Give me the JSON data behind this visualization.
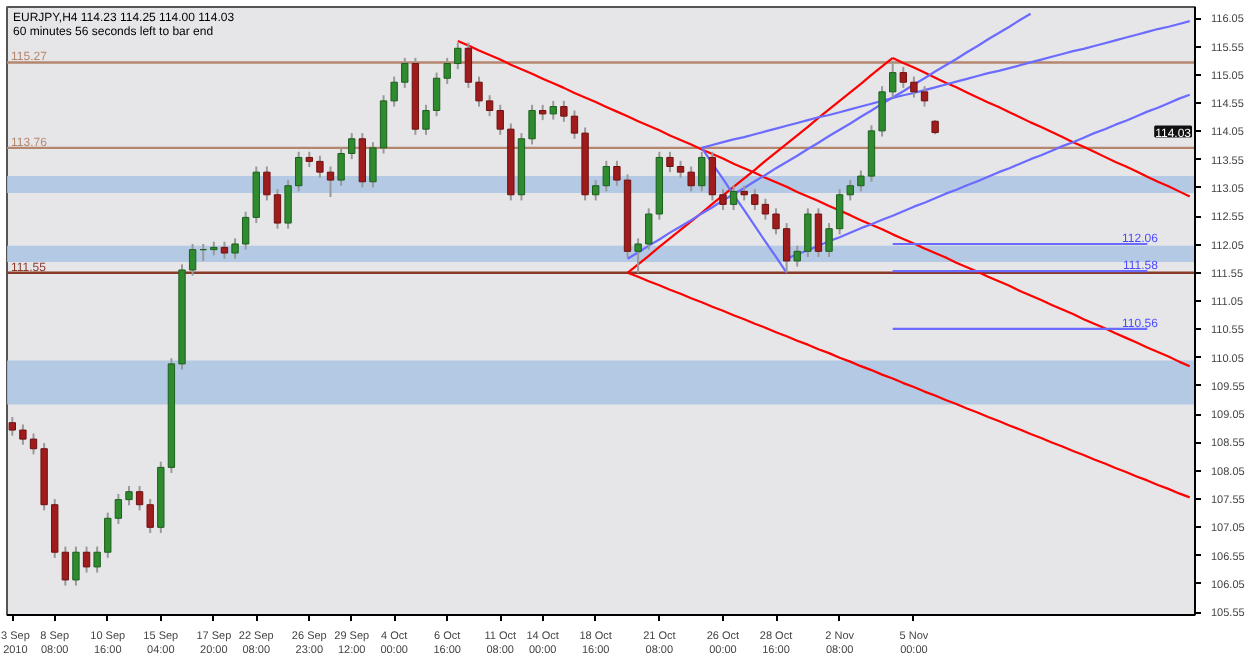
{
  "chart_data": {
    "type": "candlestick",
    "title": "EURJPY,H4  114.23 114.25 114.00 114.03",
    "subtitle": "60 minutes 56 seconds left to bar end",
    "categories": [
      "3 Sep 2010",
      null,
      null,
      null,
      "8 Sep 08:00",
      null,
      null,
      null,
      null,
      "10 Sep 16:00",
      null,
      null,
      null,
      null,
      "15 Sep 04:00",
      null,
      null,
      null,
      null,
      "17 Sep 20:00",
      null,
      null,
      null,
      "22 Sep 08:00",
      null,
      null,
      null,
      null,
      "26 Sep 23:00",
      null,
      null,
      null,
      "29 Sep 12:00",
      null,
      null,
      null,
      "4 Oct 00:00",
      null,
      null,
      null,
      null,
      "6 Oct 16:00",
      null,
      null,
      null,
      null,
      "11 Oct 08:00",
      null,
      null,
      null,
      "14 Oct 00:00",
      null,
      null,
      null,
      null,
      "18 Oct 16:00",
      null,
      null,
      null,
      null,
      null,
      "21 Oct 08:00",
      null,
      null,
      null,
      null,
      null,
      "26 Oct 00:00",
      null,
      null,
      null,
      null,
      "28 Oct 16:00",
      null,
      null,
      null,
      null,
      null,
      "2 Nov 08:00",
      null,
      null,
      null,
      null,
      null,
      null,
      "5 Nov 00:00",
      null,
      null,
      null,
      null,
      null,
      null,
      null,
      null,
      null,
      null,
      null,
      null,
      null,
      null,
      null,
      null,
      null,
      null,
      null,
      null,
      null,
      null,
      null,
      null,
      null,
      null
    ],
    "ohlc": [
      [
        108.9,
        109.0,
        108.67,
        108.77
      ],
      [
        108.77,
        108.87,
        108.51,
        108.61
      ],
      [
        108.61,
        108.71,
        108.34,
        108.44
      ],
      [
        108.44,
        108.54,
        107.35,
        107.45
      ],
      [
        107.45,
        107.55,
        106.51,
        106.61
      ],
      [
        106.61,
        106.71,
        106.02,
        106.12
      ],
      [
        106.12,
        106.71,
        106.02,
        106.61
      ],
      [
        106.61,
        106.71,
        106.25,
        106.35
      ],
      [
        106.35,
        106.71,
        106.25,
        106.61
      ],
      [
        106.61,
        107.31,
        106.51,
        107.21
      ],
      [
        107.21,
        107.64,
        107.11,
        107.54
      ],
      [
        107.54,
        107.78,
        107.44,
        107.68
      ],
      [
        107.68,
        107.78,
        107.35,
        107.45
      ],
      [
        107.45,
        107.55,
        106.95,
        107.05
      ],
      [
        107.05,
        108.21,
        106.95,
        108.11
      ],
      [
        108.11,
        110.04,
        108.01,
        109.94
      ],
      [
        109.94,
        111.7,
        109.84,
        111.6
      ],
      [
        111.6,
        112.06,
        111.5,
        111.96
      ],
      [
        111.96,
        112.06,
        111.76,
        111.96
      ],
      [
        111.96,
        112.1,
        111.86,
        112.0
      ],
      [
        112.0,
        112.1,
        111.8,
        111.9
      ],
      [
        111.9,
        112.16,
        111.8,
        112.06
      ],
      [
        112.06,
        112.63,
        111.96,
        112.53
      ],
      [
        112.53,
        113.43,
        112.43,
        113.33
      ],
      [
        113.33,
        113.43,
        112.83,
        112.93
      ],
      [
        112.93,
        113.03,
        112.33,
        112.43
      ],
      [
        112.43,
        113.19,
        112.33,
        113.09
      ],
      [
        113.09,
        113.69,
        112.99,
        113.59
      ],
      [
        113.59,
        113.69,
        113.42,
        113.52
      ],
      [
        113.52,
        113.62,
        113.23,
        113.33
      ],
      [
        113.33,
        113.43,
        112.89,
        113.19
      ],
      [
        113.19,
        113.76,
        113.09,
        113.66
      ],
      [
        113.66,
        114.02,
        113.56,
        113.92
      ],
      [
        113.92,
        114.02,
        113.06,
        113.16
      ],
      [
        113.16,
        113.86,
        113.06,
        113.76
      ],
      [
        113.76,
        114.69,
        113.66,
        114.59
      ],
      [
        114.59,
        115.02,
        114.49,
        114.92
      ],
      [
        114.92,
        115.35,
        114.82,
        115.25
      ],
      [
        115.25,
        115.35,
        113.99,
        114.09
      ],
      [
        114.09,
        114.52,
        113.99,
        114.42
      ],
      [
        114.42,
        115.09,
        114.32,
        114.99
      ],
      [
        114.99,
        115.35,
        114.89,
        115.25
      ],
      [
        115.25,
        115.62,
        115.15,
        115.52
      ],
      [
        115.52,
        115.62,
        114.82,
        114.92
      ],
      [
        114.92,
        115.02,
        114.49,
        114.59
      ],
      [
        114.59,
        114.69,
        114.32,
        114.42
      ],
      [
        114.42,
        114.52,
        113.99,
        114.09
      ],
      [
        114.09,
        114.19,
        112.83,
        112.93
      ],
      [
        112.93,
        114.02,
        112.83,
        113.92
      ],
      [
        113.92,
        114.52,
        113.82,
        114.42
      ],
      [
        114.42,
        114.52,
        114.25,
        114.36
      ],
      [
        114.36,
        114.59,
        114.26,
        114.49
      ],
      [
        114.49,
        114.59,
        114.22,
        114.32
      ],
      [
        114.32,
        114.42,
        113.92,
        114.02
      ],
      [
        114.02,
        114.12,
        112.83,
        112.93
      ],
      [
        112.93,
        113.19,
        112.83,
        113.09
      ],
      [
        113.09,
        113.53,
        112.99,
        113.43
      ],
      [
        113.43,
        113.53,
        113.09,
        113.19
      ],
      [
        113.19,
        113.29,
        111.83,
        111.93
      ],
      [
        111.93,
        112.16,
        111.55,
        112.06
      ],
      [
        112.06,
        112.69,
        111.96,
        112.59
      ],
      [
        112.59,
        113.69,
        112.49,
        113.59
      ],
      [
        113.59,
        113.69,
        113.33,
        113.43
      ],
      [
        113.43,
        113.53,
        113.23,
        113.33
      ],
      [
        113.33,
        113.43,
        112.99,
        113.09
      ],
      [
        113.09,
        113.69,
        112.99,
        113.59
      ],
      [
        113.59,
        113.69,
        112.83,
        112.93
      ],
      [
        112.93,
        113.03,
        112.66,
        112.76
      ],
      [
        112.76,
        113.09,
        112.66,
        112.99
      ],
      [
        112.99,
        113.09,
        112.83,
        112.93
      ],
      [
        112.93,
        113.03,
        112.66,
        112.76
      ],
      [
        112.76,
        112.86,
        112.49,
        112.59
      ],
      [
        112.59,
        112.69,
        112.23,
        112.33
      ],
      [
        112.33,
        112.43,
        111.56,
        111.76
      ],
      [
        111.76,
        112.03,
        111.66,
        111.93
      ],
      [
        111.93,
        112.69,
        111.83,
        112.59
      ],
      [
        112.59,
        112.69,
        111.83,
        111.93
      ],
      [
        111.93,
        112.43,
        111.83,
        112.33
      ],
      [
        112.33,
        113.03,
        112.23,
        112.93
      ],
      [
        112.93,
        113.19,
        112.83,
        113.09
      ],
      [
        113.09,
        113.36,
        112.99,
        113.26
      ],
      [
        113.26,
        114.16,
        113.16,
        114.06
      ],
      [
        114.06,
        114.85,
        113.96,
        114.75
      ],
      [
        114.75,
        115.3,
        114.65,
        115.09
      ],
      [
        115.09,
        115.19,
        114.82,
        114.92
      ],
      [
        114.92,
        115.02,
        114.65,
        114.75
      ],
      [
        114.75,
        114.85,
        114.49,
        114.59
      ],
      [
        114.23,
        114.25,
        114.0,
        114.03
      ],
      null,
      null,
      null,
      null,
      null,
      null,
      null,
      null,
      null,
      null,
      null,
      null,
      null,
      null,
      null,
      null,
      null,
      null,
      null,
      null,
      null,
      null,
      null,
      null
    ],
    "series": [
      {
        "type": "line",
        "color": "#ff0000",
        "values": [
          null,
          null,
          null,
          null,
          null,
          null,
          null,
          null,
          null,
          null,
          null,
          null,
          null,
          null,
          null,
          null,
          null,
          null,
          null,
          null,
          null,
          null,
          null,
          null,
          null,
          null,
          null,
          null,
          null,
          null,
          null,
          null,
          null,
          null,
          null,
          null,
          null,
          null,
          null,
          null,
          null,
          null,
          115.65,
          115.57,
          115.48,
          115.4,
          115.32,
          115.23,
          115.15,
          115.07,
          114.98,
          114.9,
          114.82,
          114.73,
          114.65,
          114.57,
          114.48,
          114.4,
          114.32,
          114.23,
          114.15,
          114.07,
          113.98,
          113.9,
          113.82,
          113.73,
          113.65,
          113.57,
          113.48,
          113.4,
          113.32,
          113.23,
          113.15,
          113.07,
          112.98,
          112.9,
          112.82,
          112.73,
          112.65,
          112.57,
          112.48,
          112.4,
          112.32,
          112.23,
          112.15,
          112.07,
          111.98,
          111.9,
          111.82,
          111.73,
          111.65,
          111.57,
          111.48,
          111.4,
          111.32,
          111.23,
          111.15,
          111.07,
          110.98,
          110.9,
          110.82,
          110.73,
          110.65,
          110.57,
          110.48,
          110.4,
          110.32,
          110.23,
          110.15,
          110.07,
          109.98,
          109.9
        ]
      },
      {
        "type": "line",
        "color": "#ff0000",
        "values": [
          null,
          null,
          null,
          null,
          null,
          null,
          null,
          null,
          null,
          null,
          null,
          null,
          null,
          null,
          null,
          null,
          null,
          null,
          null,
          null,
          null,
          null,
          null,
          null,
          null,
          null,
          null,
          null,
          null,
          null,
          null,
          null,
          null,
          null,
          null,
          null,
          null,
          null,
          null,
          null,
          null,
          null,
          null,
          null,
          null,
          null,
          null,
          null,
          null,
          null,
          null,
          null,
          null,
          null,
          null,
          null,
          null,
          null,
          null,
          null,
          null,
          null,
          null,
          null,
          null,
          null,
          null,
          null,
          null,
          null,
          null,
          null,
          null,
          null,
          null,
          null,
          null,
          null,
          null,
          null,
          null,
          null,
          null,
          115.35,
          115.26,
          115.18,
          115.09,
          115.0,
          114.91,
          114.83,
          114.74,
          114.65,
          114.56,
          114.48,
          114.39,
          114.3,
          114.21,
          114.13,
          114.04,
          113.95,
          113.86,
          113.78,
          113.69,
          113.6,
          113.51,
          113.43,
          113.34,
          113.25,
          113.16,
          113.08,
          112.99,
          112.9
        ]
      },
      {
        "type": "line",
        "color": "#ff0000",
        "values": [
          null,
          null,
          null,
          null,
          null,
          null,
          null,
          null,
          null,
          null,
          null,
          null,
          null,
          null,
          null,
          null,
          null,
          null,
          null,
          null,
          null,
          null,
          null,
          null,
          null,
          null,
          null,
          null,
          null,
          null,
          null,
          null,
          null,
          null,
          null,
          null,
          null,
          null,
          null,
          null,
          null,
          null,
          null,
          null,
          null,
          null,
          null,
          null,
          null,
          null,
          null,
          null,
          null,
          null,
          null,
          null,
          null,
          null,
          111.55,
          111.48,
          111.4,
          111.33,
          111.25,
          111.18,
          111.1,
          111.03,
          110.95,
          110.88,
          110.8,
          110.73,
          110.65,
          110.58,
          110.5,
          110.43,
          110.35,
          110.28,
          110.2,
          110.13,
          110.05,
          109.98,
          109.9,
          109.83,
          109.75,
          109.68,
          109.6,
          109.53,
          109.45,
          109.38,
          109.3,
          109.23,
          109.15,
          109.08,
          109.0,
          108.93,
          108.85,
          108.78,
          108.7,
          108.63,
          108.55,
          108.48,
          108.4,
          108.33,
          108.25,
          108.18,
          108.1,
          108.03,
          107.95,
          107.88,
          107.8,
          107.73,
          107.65,
          107.58
        ]
      },
      {
        "type": "line",
        "color": "#ff0000",
        "values": [
          null,
          null,
          null,
          null,
          null,
          null,
          null,
          null,
          null,
          null,
          null,
          null,
          null,
          null,
          null,
          null,
          null,
          null,
          null,
          null,
          null,
          null,
          null,
          null,
          null,
          null,
          null,
          null,
          null,
          null,
          null,
          null,
          null,
          null,
          null,
          null,
          null,
          null,
          null,
          null,
          null,
          null,
          null,
          null,
          null,
          null,
          null,
          null,
          null,
          null,
          null,
          null,
          null,
          null,
          null,
          null,
          null,
          null,
          111.55,
          111.7,
          111.85,
          112.01,
          112.16,
          112.31,
          112.46,
          112.61,
          112.77,
          112.92,
          113.07,
          113.22,
          113.37,
          113.53,
          113.68,
          113.83,
          113.98,
          114.13,
          114.29,
          114.44,
          114.59,
          114.74,
          114.89,
          115.05,
          115.2,
          115.35,
          null,
          null,
          null,
          null,
          null,
          null,
          null,
          null,
          null,
          null,
          null,
          null,
          null,
          null,
          null,
          null,
          null,
          null,
          null,
          null,
          null,
          null,
          null,
          null,
          null,
          null,
          null,
          null
        ]
      },
      {
        "type": "line",
        "color": "#6b6bff",
        "values": [
          null,
          null,
          null,
          null,
          null,
          null,
          null,
          null,
          null,
          null,
          null,
          null,
          null,
          null,
          null,
          null,
          null,
          null,
          null,
          null,
          null,
          null,
          null,
          null,
          null,
          null,
          null,
          null,
          null,
          null,
          null,
          null,
          null,
          null,
          null,
          null,
          null,
          null,
          null,
          null,
          null,
          null,
          null,
          null,
          null,
          null,
          null,
          null,
          null,
          null,
          null,
          null,
          null,
          null,
          null,
          null,
          null,
          null,
          111.8,
          111.91,
          112.03,
          112.14,
          112.26,
          112.37,
          112.48,
          112.6,
          112.71,
          112.83,
          112.94,
          113.05,
          113.17,
          113.28,
          113.4,
          113.51,
          113.62,
          113.74,
          113.85,
          113.97,
          114.08,
          114.19,
          114.31,
          114.42,
          114.54,
          114.65,
          114.76,
          114.88,
          114.99,
          115.11,
          115.22,
          115.33,
          115.45,
          115.56,
          115.68,
          115.79,
          115.9,
          116.02,
          116.13,
          null,
          null,
          null,
          null,
          null,
          null,
          null,
          null,
          null,
          null,
          null,
          null,
          null,
          null,
          null
        ]
      },
      {
        "type": "line",
        "color": "#6b6bff",
        "values": [
          null,
          null,
          null,
          null,
          null,
          null,
          null,
          null,
          null,
          null,
          null,
          null,
          null,
          null,
          null,
          null,
          null,
          null,
          null,
          null,
          null,
          null,
          null,
          null,
          null,
          null,
          null,
          null,
          null,
          null,
          null,
          null,
          null,
          null,
          null,
          null,
          null,
          null,
          null,
          null,
          null,
          null,
          null,
          null,
          null,
          null,
          null,
          null,
          null,
          null,
          null,
          null,
          null,
          null,
          null,
          null,
          null,
          null,
          null,
          null,
          null,
          null,
          null,
          null,
          null,
          113.76,
          113.81,
          113.86,
          113.91,
          113.95,
          114.0,
          114.05,
          114.1,
          114.15,
          114.2,
          114.25,
          114.3,
          114.34,
          114.39,
          114.44,
          114.49,
          114.54,
          114.59,
          114.64,
          114.69,
          114.73,
          114.78,
          114.83,
          114.88,
          114.93,
          114.98,
          115.03,
          115.08,
          115.12,
          115.17,
          115.22,
          115.27,
          115.32,
          115.37,
          115.42,
          115.47,
          115.51,
          115.56,
          115.61,
          115.66,
          115.71,
          115.76,
          115.81,
          115.86,
          115.9,
          115.95,
          116.0
        ]
      },
      {
        "type": "line",
        "color": "#6b6bff",
        "values": [
          null,
          null,
          null,
          null,
          null,
          null,
          null,
          null,
          null,
          null,
          null,
          null,
          null,
          null,
          null,
          null,
          null,
          null,
          null,
          null,
          null,
          null,
          null,
          null,
          null,
          null,
          null,
          null,
          null,
          null,
          null,
          null,
          null,
          null,
          null,
          null,
          null,
          null,
          null,
          null,
          null,
          null,
          null,
          null,
          null,
          null,
          null,
          null,
          null,
          null,
          null,
          null,
          null,
          null,
          null,
          null,
          null,
          null,
          null,
          null,
          null,
          null,
          null,
          null,
          null,
          null,
          null,
          null,
          null,
          null,
          null,
          null,
          null,
          111.8,
          111.88,
          111.95,
          112.03,
          112.11,
          112.18,
          112.26,
          112.34,
          112.41,
          112.49,
          112.56,
          112.64,
          112.72,
          112.79,
          112.87,
          112.95,
          113.02,
          113.1,
          113.17,
          113.25,
          113.33,
          113.4,
          113.48,
          113.56,
          113.63,
          113.71,
          113.79,
          113.86,
          113.94,
          114.02,
          114.09,
          114.17,
          114.24,
          114.32,
          114.4,
          114.47,
          114.55,
          114.63,
          114.7
        ]
      },
      {
        "type": "line",
        "color": "#6b6bff",
        "values": [
          null,
          null,
          null,
          null,
          null,
          null,
          null,
          null,
          null,
          null,
          null,
          null,
          null,
          null,
          null,
          null,
          null,
          null,
          null,
          null,
          null,
          null,
          null,
          null,
          null,
          null,
          null,
          null,
          null,
          null,
          null,
          null,
          null,
          null,
          null,
          null,
          null,
          null,
          null,
          null,
          null,
          null,
          null,
          null,
          null,
          null,
          null,
          null,
          null,
          null,
          null,
          null,
          null,
          null,
          null,
          null,
          null,
          null,
          null,
          null,
          null,
          null,
          null,
          null,
          null,
          113.76,
          113.48,
          113.21,
          112.93,
          112.66,
          112.38,
          112.1,
          111.83,
          111.55,
          null,
          null,
          null,
          null,
          null,
          null,
          null,
          null,
          null,
          null,
          null,
          null,
          null,
          null,
          null,
          null,
          null,
          null,
          null,
          null,
          null,
          null,
          null,
          null,
          null,
          null,
          null,
          null,
          null,
          null,
          null,
          null,
          null,
          null,
          null,
          null,
          null,
          null
        ]
      },
      {
        "type": "line",
        "color": "#6b6bff",
        "values": [
          null,
          null,
          null,
          null,
          null,
          null,
          null,
          null,
          null,
          null,
          null,
          null,
          null,
          null,
          null,
          null,
          null,
          null,
          null,
          null,
          null,
          null,
          null,
          null,
          null,
          null,
          null,
          null,
          null,
          null,
          null,
          null,
          null,
          null,
          null,
          null,
          null,
          null,
          null,
          null,
          null,
          null,
          null,
          null,
          null,
          null,
          null,
          null,
          null,
          null,
          null,
          null,
          null,
          null,
          null,
          null,
          null,
          null,
          null,
          null,
          null,
          null,
          null,
          null,
          null,
          null,
          null,
          null,
          null,
          null,
          null,
          null,
          null,
          null,
          null,
          null,
          null,
          null,
          null,
          null,
          null,
          null,
          null,
          112.06,
          112.06,
          112.06,
          112.06,
          112.06,
          112.06,
          112.06,
          112.06,
          112.06,
          112.06,
          112.06,
          112.06,
          112.06,
          112.06,
          112.06,
          112.06,
          112.06,
          112.06,
          112.06,
          112.06,
          112.06,
          112.06,
          112.06,
          112.06,
          112.06,
          null,
          null,
          null,
          null
        ]
      },
      {
        "type": "line",
        "color": "#6b6bff",
        "values": [
          null,
          null,
          null,
          null,
          null,
          null,
          null,
          null,
          null,
          null,
          null,
          null,
          null,
          null,
          null,
          null,
          null,
          null,
          null,
          null,
          null,
          null,
          null,
          null,
          null,
          null,
          null,
          null,
          null,
          null,
          null,
          null,
          null,
          null,
          null,
          null,
          null,
          null,
          null,
          null,
          null,
          null,
          null,
          null,
          null,
          null,
          null,
          null,
          null,
          null,
          null,
          null,
          null,
          null,
          null,
          null,
          null,
          null,
          null,
          null,
          null,
          null,
          null,
          null,
          null,
          null,
          null,
          null,
          null,
          null,
          null,
          null,
          null,
          null,
          null,
          null,
          null,
          null,
          null,
          null,
          null,
          null,
          null,
          111.58,
          111.58,
          111.58,
          111.58,
          111.58,
          111.58,
          111.58,
          111.58,
          111.58,
          111.58,
          111.58,
          111.58,
          111.58,
          111.58,
          111.58,
          111.58,
          111.58,
          111.58,
          111.58,
          111.58,
          111.58,
          111.58,
          111.58,
          111.58,
          111.58,
          null,
          null,
          null,
          null
        ]
      },
      {
        "type": "line",
        "color": "#6b6bff",
        "values": [
          null,
          null,
          null,
          null,
          null,
          null,
          null,
          null,
          null,
          null,
          null,
          null,
          null,
          null,
          null,
          null,
          null,
          null,
          null,
          null,
          null,
          null,
          null,
          null,
          null,
          null,
          null,
          null,
          null,
          null,
          null,
          null,
          null,
          null,
          null,
          null,
          null,
          null,
          null,
          null,
          null,
          null,
          null,
          null,
          null,
          null,
          null,
          null,
          null,
          null,
          null,
          null,
          null,
          null,
          null,
          null,
          null,
          null,
          null,
          null,
          null,
          null,
          null,
          null,
          null,
          null,
          null,
          null,
          null,
          null,
          null,
          null,
          null,
          null,
          null,
          null,
          null,
          null,
          null,
          null,
          null,
          null,
          null,
          110.56,
          110.56,
          110.56,
          110.56,
          110.56,
          110.56,
          110.56,
          110.56,
          110.56,
          110.56,
          110.56,
          110.56,
          110.56,
          110.56,
          110.56,
          110.56,
          110.56,
          110.56,
          110.56,
          110.56,
          110.56,
          110.56,
          110.56,
          110.56,
          110.56,
          null,
          null,
          null,
          null
        ]
      }
    ],
    "annotations": [
      {
        "text": "112.06",
        "y": 112.06
      },
      {
        "text": "111.58",
        "y": 111.58
      },
      {
        "text": "110.56",
        "y": 110.56
      },
      "114.03"
    ],
    "ref_lines": [
      {
        "axis": "y",
        "value": 115.27,
        "label": "115.27",
        "color": "#b4866e"
      },
      {
        "axis": "y",
        "value": 113.76,
        "label": "113.76",
        "color": "#b4866e"
      },
      {
        "axis": "y",
        "value": 111.55,
        "label": "111.55",
        "color": "#8b3a2a"
      }
    ],
    "bands": [
      {
        "axis": "y",
        "from": 112.96,
        "to": 113.26,
        "color": "#a9c3e3"
      },
      {
        "axis": "y",
        "from": 111.74,
        "to": 112.03,
        "color": "#a9c3e3"
      },
      {
        "axis": "y",
        "from": 109.22,
        "to": 110.0,
        "color": "#a9c3e3"
      }
    ],
    "ylim": [
      105.5,
      116.25
    ],
    "yticks": [
      105.55,
      106.05,
      106.55,
      107.05,
      107.55,
      108.05,
      108.55,
      109.05,
      109.55,
      110.05,
      110.55,
      111.05,
      111.55,
      112.05,
      112.55,
      113.05,
      113.55,
      114.05,
      114.55,
      115.05,
      115.55,
      116.05
    ],
    "grid": false
  }
}
